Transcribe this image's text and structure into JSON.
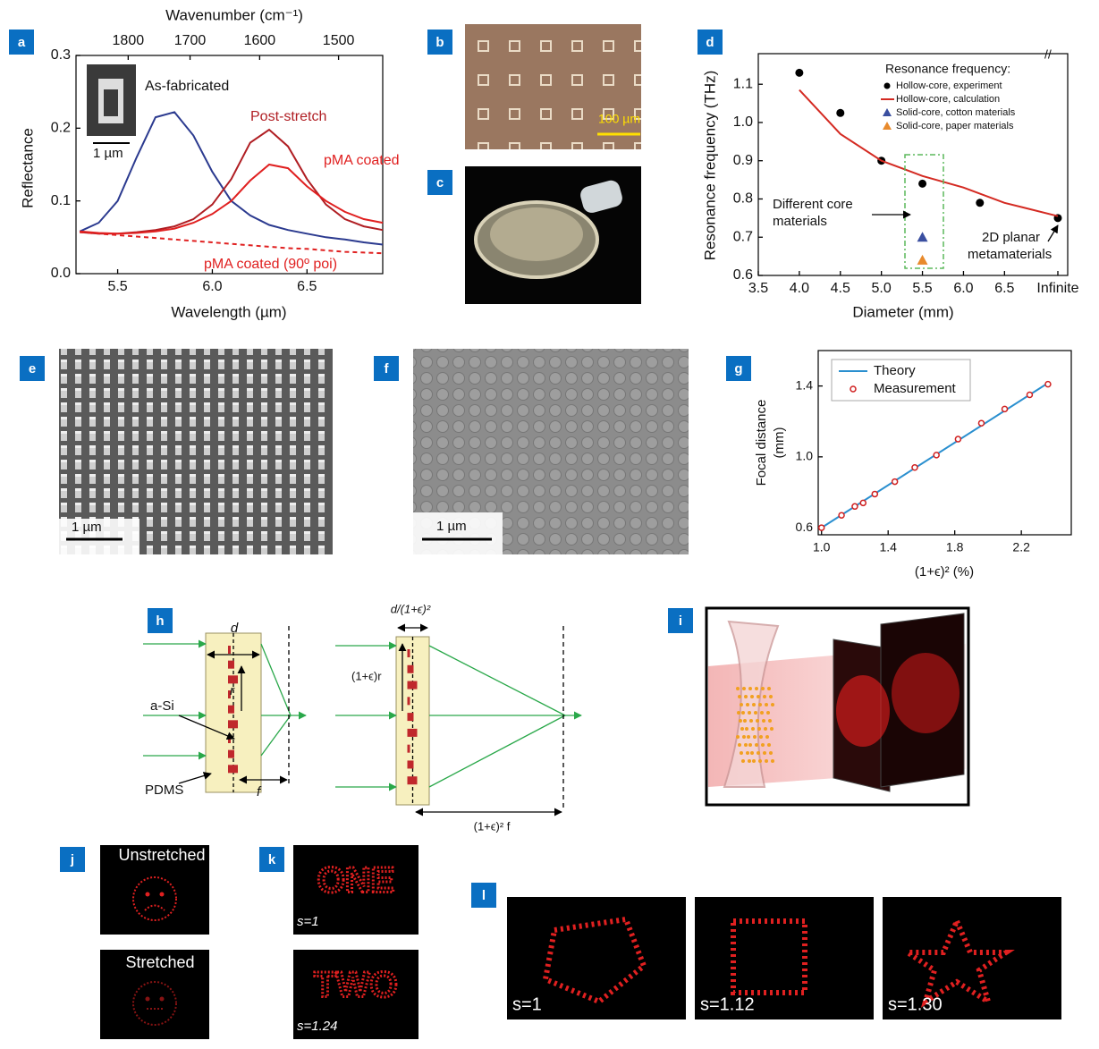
{
  "panel_labels": [
    "a",
    "b",
    "c",
    "d",
    "e",
    "f",
    "g",
    "h",
    "i",
    "j",
    "k",
    "l"
  ],
  "chart_data": [
    {
      "type": "line",
      "xlabel": "Wavelength (µm)",
      "ylabel": "Reflectance",
      "x2label": "Wavenumber (cm⁻¹)",
      "inset_scale_bar": "1 µm",
      "xlim": [
        5.28,
        6.9
      ],
      "ylim": [
        0,
        0.3
      ],
      "xticks": [
        {
          "value": 5.5,
          "label": "5.5"
        },
        {
          "value": 6,
          "label": "6.0"
        },
        {
          "value": 6.5,
          "label": "6.5"
        }
      ],
      "yticks": [
        {
          "value": 0,
          "label": "0.0"
        },
        0.1,
        0.2,
        0.3
      ],
      "x2ticks": [
        1800,
        1700,
        1600,
        1500
      ],
      "x": [
        5.3,
        5.4,
        5.5,
        5.6,
        5.7,
        5.8,
        5.9,
        6.0,
        6.1,
        6.2,
        6.3,
        6.4,
        6.5,
        6.6,
        6.7,
        6.8,
        6.9
      ],
      "series": [
        {
          "name": "As-fabricated",
          "color": "#2b3a8f",
          "mode": "line",
          "values": [
            0.058,
            0.07,
            0.1,
            0.16,
            0.215,
            0.222,
            0.19,
            0.14,
            0.1,
            0.08,
            0.067,
            0.06,
            0.055,
            0.05,
            0.047,
            0.043,
            0.04
          ]
        },
        {
          "name": "Post-stretch",
          "color": "#b01e23",
          "mode": "line",
          "values": [
            0.057,
            0.055,
            0.055,
            0.057,
            0.06,
            0.065,
            0.075,
            0.095,
            0.13,
            0.18,
            0.198,
            0.175,
            0.13,
            0.095,
            0.075,
            0.065,
            0.06
          ]
        },
        {
          "name": "pMA coated",
          "color": "#e02020",
          "mode": "line",
          "values": [
            0.058,
            0.056,
            0.055,
            0.056,
            0.058,
            0.062,
            0.07,
            0.082,
            0.1,
            0.128,
            0.15,
            0.145,
            0.12,
            0.1,
            0.085,
            0.075,
            0.07
          ]
        },
        {
          "name": "pMA coated (90º poi)",
          "color": "#e02020",
          "mode": "line",
          "dash": true,
          "values": [
            0.057,
            0.055,
            0.053,
            0.051,
            0.049,
            0.047,
            0.045,
            0.043,
            0.041,
            0.039,
            0.037,
            0.035,
            0.034,
            0.032,
            0.03,
            0.029,
            0.028
          ]
        }
      ]
    },
    {
      "type": "scatter",
      "xlabel": "Diameter (mm)",
      "ylabel": "Resonance frequency (THz)",
      "legend_title": "Resonance frequency:",
      "annotations": [
        "Different core materials",
        "2D planar metamaterials"
      ],
      "xlim": [
        3.5,
        7.27
      ],
      "ylim": [
        0.6,
        1.18
      ],
      "xticks": [
        3.5,
        {
          "value": 4,
          "label": "4.0"
        },
        4.5,
        {
          "value": 5,
          "label": "5.0"
        },
        5.5,
        {
          "value": 6,
          "label": "6.0"
        },
        6.5,
        {
          "value": 7.15,
          "label": "Infinite"
        }
      ],
      "yticks": [
        0.6,
        0.7,
        0.8,
        0.9,
        {
          "value": 1,
          "label": "1.0"
        },
        1.1
      ],
      "series": [
        {
          "name": "Hollow-core, experiment",
          "color": "#000000",
          "mode": "markers",
          "marker": "circle",
          "x": [
            4.0,
            4.5,
            5.0,
            5.5,
            6.2,
            7.15
          ],
          "values": [
            1.13,
            1.025,
            0.9,
            0.84,
            0.79,
            0.75
          ]
        },
        {
          "name": "Hollow-core, calculation",
          "color": "#d42a22",
          "mode": "line",
          "x": [
            4.0,
            4.5,
            5.0,
            5.5,
            6.0,
            6.5,
            7.15
          ],
          "values": [
            1.085,
            0.97,
            0.9,
            0.86,
            0.83,
            0.79,
            0.755
          ]
        },
        {
          "name": "Solid-core, cotton materials",
          "color": "#3a4fa0",
          "mode": "markers",
          "marker": "triangle",
          "x": [
            5.5
          ],
          "values": [
            0.7
          ]
        },
        {
          "name": "Solid-core, paper materials",
          "color": "#e88a2c",
          "mode": "markers",
          "marker": "triangle",
          "x": [
            5.5
          ],
          "values": [
            0.64
          ]
        }
      ]
    },
    {
      "type": "scatter",
      "xlabel": "(1+ϵ)² (%)",
      "ylabel": [
        "Focal distance",
        "(mm)"
      ],
      "xlim": [
        0.98,
        2.5
      ],
      "ylim": [
        0.56,
        1.6
      ],
      "xticks": [
        {
          "value": 1,
          "label": "1.0"
        },
        1.4,
        1.8,
        2.2
      ],
      "yticks": [
        0.6,
        {
          "value": 1,
          "label": "1.0"
        },
        1.4
      ],
      "series": [
        {
          "name": "Theory",
          "color": "#2a8fcf",
          "mode": "line",
          "x": [
            1.0,
            2.36
          ],
          "values": [
            0.6,
            1.416
          ]
        },
        {
          "name": "Measurement",
          "color": "#d02020",
          "mode": "markers",
          "marker": "open-circle",
          "x": [
            1.0,
            1.12,
            1.2,
            1.25,
            1.32,
            1.44,
            1.56,
            1.69,
            1.82,
            1.96,
            2.1,
            2.25,
            2.36
          ],
          "values": [
            0.6,
            0.67,
            0.72,
            0.74,
            0.79,
            0.86,
            0.94,
            1.01,
            1.1,
            1.19,
            1.27,
            1.35,
            1.41
          ]
        }
      ]
    }
  ],
  "images": {
    "b": {
      "scale_bar": "100 µm"
    },
    "e": {
      "scale_bar": "1 µm"
    },
    "f": {
      "scale_bar": "1 µm"
    },
    "j": [
      "Unstretched",
      "Stretched"
    ],
    "k": [
      {
        "word": "ONE",
        "label": "s=1"
      },
      {
        "word": "TWO",
        "label": "s=1.24"
      }
    ],
    "l": [
      "s=1",
      "s=1.12",
      "s=1.30"
    ]
  },
  "diagram_h": {
    "left": {
      "width": "d",
      "radius": "r",
      "material": "a-Si",
      "substrate": "PDMS",
      "focal": "f"
    },
    "right": {
      "width": "d/(1+ϵ)²",
      "radius": "(1+ϵ)r",
      "focal": "(1+ϵ)² f"
    }
  }
}
